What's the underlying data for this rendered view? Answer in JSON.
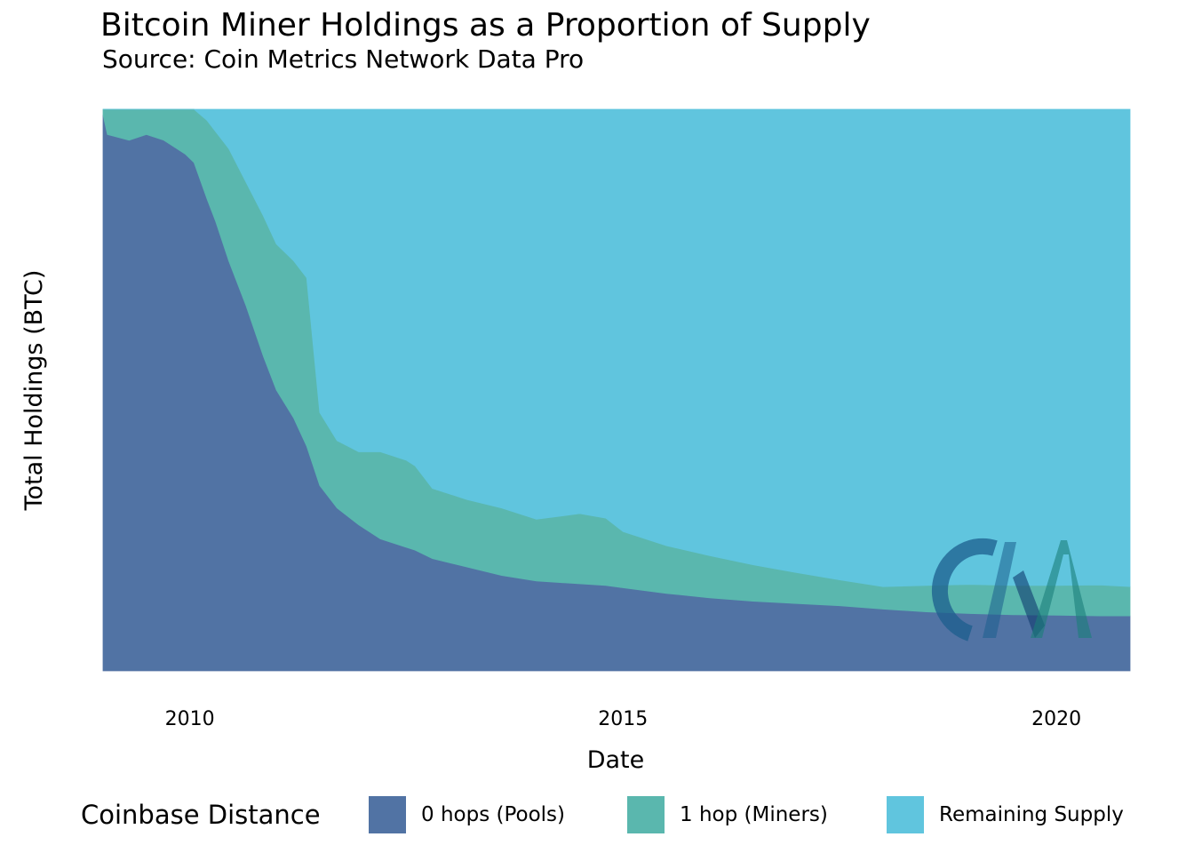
{
  "chart_data": {
    "type": "area",
    "stacked": true,
    "normalized": true,
    "title": "Bitcoin Miner Holdings as a Proportion of Supply",
    "subtitle": "Source: Coin Metrics Network Data Pro",
    "xlabel": "Date",
    "ylabel": "Total Holdings (BTC)",
    "xlim": [
      2009.0,
      2020.85
    ],
    "ylim": [
      0,
      1
    ],
    "x_ticks": [
      2010,
      2015,
      2020
    ],
    "x_tick_labels": [
      "2010",
      "2015",
      "2020"
    ],
    "y_ticks_shown": false,
    "grid": false,
    "legend": {
      "title": "Coinbase Distance",
      "position": "bottom",
      "items": [
        "0 hops (Pools)",
        "1 hop (Miners)",
        "Remaining Supply"
      ]
    },
    "x": [
      2009.0,
      2009.05,
      2009.3,
      2009.5,
      2009.7,
      2009.95,
      2010.05,
      2010.2,
      2010.3,
      2010.45,
      2010.65,
      2010.85,
      2011.0,
      2011.2,
      2011.35,
      2011.5,
      2011.7,
      2011.95,
      2012.2,
      2012.5,
      2012.6,
      2012.8,
      2013.2,
      2013.6,
      2014.0,
      2014.5,
      2014.8,
      2015.0,
      2015.5,
      2016.0,
      2016.5,
      2017.0,
      2017.5,
      2018.0,
      2018.5,
      2019.0,
      2019.5,
      2020.0,
      2020.5,
      2020.85
    ],
    "series": [
      {
        "name": "0 hops (Pools)",
        "color": "#5173a4",
        "values": [
          0.99,
          0.955,
          0.945,
          0.955,
          0.945,
          0.92,
          0.905,
          0.84,
          0.8,
          0.73,
          0.65,
          0.56,
          0.5,
          0.45,
          0.4,
          0.33,
          0.29,
          0.26,
          0.235,
          0.22,
          0.215,
          0.2,
          0.185,
          0.17,
          0.16,
          0.155,
          0.152,
          0.148,
          0.138,
          0.13,
          0.124,
          0.12,
          0.116,
          0.11,
          0.105,
          0.102,
          0.1,
          0.099,
          0.098,
          0.098
        ]
      },
      {
        "name": "1 hop (Miners)",
        "color": "#5ab7ae",
        "values": [
          0.01,
          0.045,
          0.055,
          0.045,
          0.055,
          0.08,
          0.095,
          0.14,
          0.16,
          0.2,
          0.22,
          0.25,
          0.26,
          0.28,
          0.3,
          0.13,
          0.12,
          0.13,
          0.155,
          0.155,
          0.15,
          0.125,
          0.12,
          0.12,
          0.11,
          0.125,
          0.12,
          0.1,
          0.085,
          0.075,
          0.065,
          0.055,
          0.046,
          0.04,
          0.047,
          0.052,
          0.052,
          0.053,
          0.055,
          0.052
        ]
      },
      {
        "name": "Remaining Supply",
        "color": "#60c5de",
        "values": [
          0.0,
          0.0,
          0.0,
          0.0,
          0.0,
          0.0,
          0.0,
          0.02,
          0.04,
          0.07,
          0.13,
          0.19,
          0.24,
          0.27,
          0.3,
          0.54,
          0.59,
          0.61,
          0.61,
          0.625,
          0.635,
          0.675,
          0.695,
          0.71,
          0.73,
          0.72,
          0.728,
          0.752,
          0.777,
          0.795,
          0.811,
          0.825,
          0.838,
          0.85,
          0.848,
          0.846,
          0.848,
          0.848,
          0.847,
          0.85
        ]
      }
    ]
  },
  "watermark": {
    "text": "CM",
    "colors": [
      "#1c5e8e",
      "#0f3a6e",
      "#1a7f7a"
    ]
  }
}
